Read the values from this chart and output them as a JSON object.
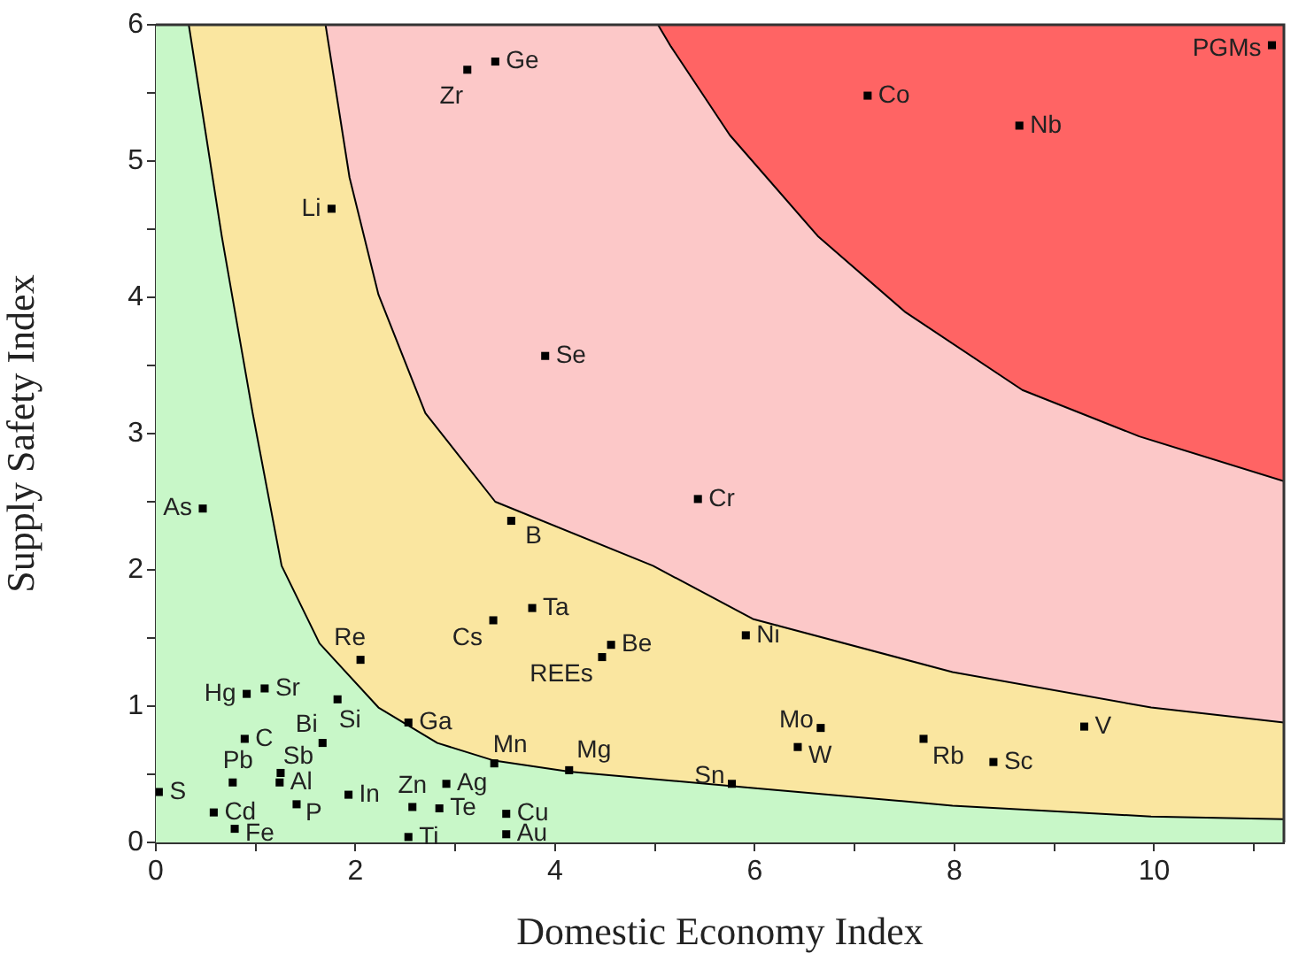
{
  "chart_data": {
    "type": "scatter",
    "xlabel": "Domestic Economy Index",
    "ylabel": "Supply Safety Index",
    "xlim": [
      0,
      11.3
    ],
    "ylim": [
      0,
      6
    ],
    "xticks": [
      0,
      {
        "value": 1,
        "label": null
      },
      2,
      {
        "value": 3,
        "label": null
      },
      4,
      {
        "value": 5,
        "label": null
      },
      6,
      {
        "value": 7,
        "label": null
      },
      8,
      {
        "value": 9,
        "label": null
      },
      10,
      {
        "value": 11,
        "label": null
      }
    ],
    "yticks": [
      0,
      {
        "value": 0.5,
        "label": null
      },
      1,
      {
        "value": 1.5,
        "label": null
      },
      2,
      {
        "value": 2.5,
        "label": null
      },
      3,
      {
        "value": 3.5,
        "label": null
      },
      4,
      {
        "value": 4.5,
        "label": null
      },
      5,
      {
        "value": 5.5,
        "label": null
      },
      6
    ],
    "grid": false,
    "legend": false,
    "marker": "square",
    "bands": [
      {
        "axis": "y",
        "from": 0,
        "to": 6,
        "color": "#c8f7c8"
      }
    ],
    "series": [
      {
        "type": "area",
        "color": "#fae6a0",
        "marker": "none",
        "x": [
          0.33,
          0.66,
          0.97,
          1.26,
          1.64,
          2.23,
          2.82,
          3.39,
          4.14,
          5.98,
          7.98,
          9.97,
          11.3,
          11.3
        ],
        "values": [
          6,
          4.45,
          3.15,
          2.03,
          1.46,
          0.99,
          0.73,
          0.6,
          0.52,
          0.4,
          0.27,
          0.19,
          0.17,
          6
        ]
      },
      {
        "type": "area",
        "color": "#fcc8c8",
        "marker": "none",
        "x": [
          1.7,
          1.94,
          2.23,
          2.7,
          3.4,
          4.98,
          5.98,
          7.98,
          9.97,
          11.3,
          11.3
        ],
        "values": [
          6,
          4.88,
          4.02,
          3.15,
          2.5,
          2.03,
          1.64,
          1.25,
          0.99,
          0.88,
          6
        ]
      },
      {
        "type": "area",
        "color": "#ff6464",
        "marker": "none",
        "x": [
          5.03,
          5.16,
          5.75,
          6.63,
          7.51,
          8.68,
          9.85,
          11.3,
          11.3
        ],
        "values": [
          6,
          5.84,
          5.19,
          4.45,
          3.89,
          3.32,
          2.98,
          2.65,
          6
        ]
      },
      {
        "type": "scatter",
        "color": "#000000",
        "x": [
          3.12,
          3.4,
          1.76,
          3.9,
          0.47,
          3.56,
          5.43,
          7.13,
          8.65,
          11.18,
          2.05,
          3.38,
          3.77,
          4.56,
          4.47,
          0.91,
          1.09,
          1.82,
          0.89,
          1.67,
          0.77,
          1.25,
          1.24,
          0.03,
          0.58,
          1.41,
          1.93,
          0.79,
          2.53,
          2.57,
          2.53,
          2.91,
          2.84,
          3.39,
          3.51,
          3.51,
          4.14,
          5.91,
          6.66,
          6.43,
          7.69,
          8.39,
          9.3,
          5.77
        ],
        "values": [
          5.67,
          5.73,
          4.65,
          3.57,
          2.45,
          2.36,
          2.52,
          5.48,
          5.26,
          5.85,
          1.34,
          1.63,
          1.72,
          1.45,
          1.36,
          1.09,
          1.13,
          1.05,
          0.76,
          0.73,
          0.44,
          0.51,
          0.44,
          0.37,
          0.22,
          0.28,
          0.35,
          0.1,
          0.88,
          0.26,
          0.04,
          0.43,
          0.25,
          0.58,
          0.21,
          0.06,
          0.53,
          1.52,
          0.84,
          0.7,
          0.76,
          0.59,
          0.85,
          0.43
        ]
      }
    ],
    "annotations": [
      {
        "text": "Zr",
        "x": 3.12,
        "y": 5.67
      },
      {
        "text": "Ge",
        "x": 3.4,
        "y": 5.73
      },
      {
        "text": "Li",
        "x": 1.76,
        "y": 4.65
      },
      {
        "text": "Se",
        "x": 3.9,
        "y": 3.57
      },
      {
        "text": "As",
        "x": 0.47,
        "y": 2.45
      },
      {
        "text": "B",
        "x": 3.56,
        "y": 2.36
      },
      {
        "text": "Cr",
        "x": 5.43,
        "y": 2.52
      },
      {
        "text": "Co",
        "x": 7.13,
        "y": 5.48
      },
      {
        "text": "Nb",
        "x": 8.65,
        "y": 5.26
      },
      {
        "text": "PGMs",
        "x": 11.18,
        "y": 5.85
      },
      {
        "text": "Re",
        "x": 2.05,
        "y": 1.34
      },
      {
        "text": "Cs",
        "x": 3.38,
        "y": 1.63
      },
      {
        "text": "Ta",
        "x": 3.77,
        "y": 1.72
      },
      {
        "text": "Be",
        "x": 4.56,
        "y": 1.45
      },
      {
        "text": "REEs",
        "x": 4.47,
        "y": 1.36
      },
      {
        "text": "Hg",
        "x": 0.91,
        "y": 1.09
      },
      {
        "text": "Sr",
        "x": 1.09,
        "y": 1.13
      },
      {
        "text": "Si",
        "x": 1.82,
        "y": 1.05
      },
      {
        "text": "C",
        "x": 0.89,
        "y": 0.76
      },
      {
        "text": "Bi",
        "x": 1.67,
        "y": 0.73
      },
      {
        "text": "Pb",
        "x": 0.77,
        "y": 0.44
      },
      {
        "text": "Sb",
        "x": 1.25,
        "y": 0.51
      },
      {
        "text": "Al",
        "x": 1.24,
        "y": 0.44
      },
      {
        "text": "S",
        "x": 0.03,
        "y": 0.37
      },
      {
        "text": "Cd",
        "x": 0.58,
        "y": 0.22
      },
      {
        "text": "P",
        "x": 1.41,
        "y": 0.28
      },
      {
        "text": "In",
        "x": 1.93,
        "y": 0.35
      },
      {
        "text": "Fe",
        "x": 0.79,
        "y": 0.1
      },
      {
        "text": "Ga",
        "x": 2.53,
        "y": 0.88
      },
      {
        "text": "Zn",
        "x": 2.57,
        "y": 0.26
      },
      {
        "text": "Ti",
        "x": 2.53,
        "y": 0.04
      },
      {
        "text": "Ag",
        "x": 2.91,
        "y": 0.43
      },
      {
        "text": "Te",
        "x": 2.84,
        "y": 0.25
      },
      {
        "text": "Mn",
        "x": 3.39,
        "y": 0.58
      },
      {
        "text": "Cu",
        "x": 3.51,
        "y": 0.21
      },
      {
        "text": "Au",
        "x": 3.51,
        "y": 0.06
      },
      {
        "text": "Mg",
        "x": 4.14,
        "y": 0.53
      },
      {
        "text": "Ni",
        "x": 5.91,
        "y": 1.52
      },
      {
        "text": "Mo",
        "x": 6.66,
        "y": 0.84
      },
      {
        "text": "W",
        "x": 6.43,
        "y": 0.7
      },
      {
        "text": "Rb",
        "x": 7.69,
        "y": 0.76
      },
      {
        "text": "Sc",
        "x": 8.39,
        "y": 0.59
      },
      {
        "text": "V",
        "x": 9.3,
        "y": 0.85
      },
      {
        "text": "Sn",
        "x": 5.77,
        "y": 0.43
      }
    ]
  }
}
